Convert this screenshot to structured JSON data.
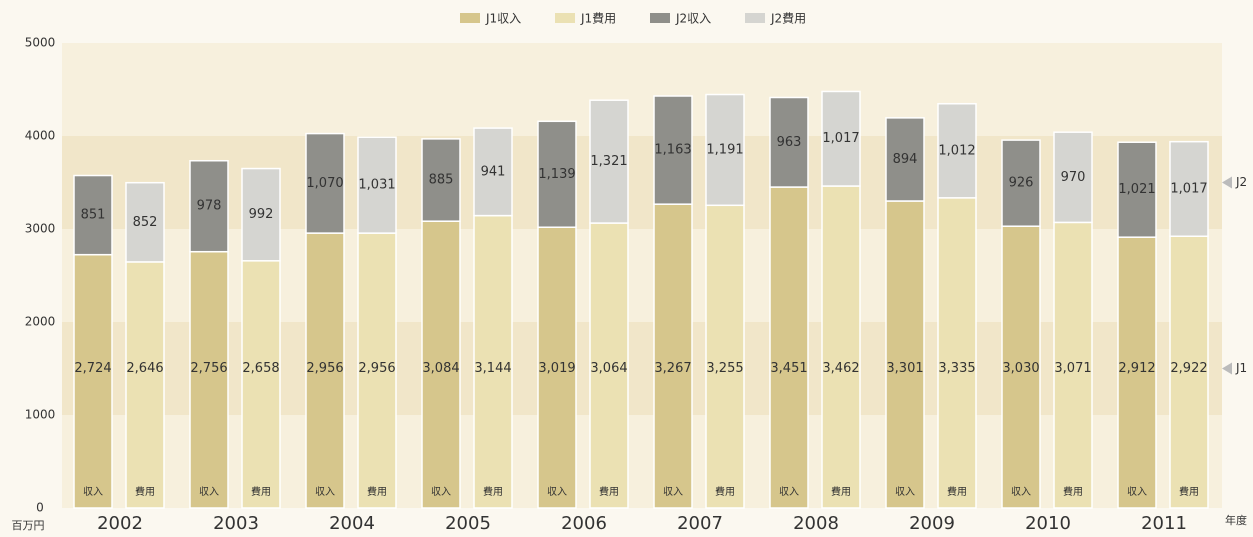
{
  "chart_data": {
    "type": "bar",
    "categories": [
      "2002",
      "2003",
      "2004",
      "2005",
      "2006",
      "2007",
      "2008",
      "2009",
      "2010",
      "2011"
    ],
    "bar_labels": [
      "収入",
      "費用"
    ],
    "series": [
      {
        "name": "J1収入",
        "color": "#d6c68c",
        "values": [
          2724,
          2756,
          2956,
          3084,
          3019,
          3267,
          3451,
          3301,
          3030,
          2912
        ],
        "value_labels": [
          "2,724",
          "2,756",
          "2,956",
          "3,084",
          "3,019",
          "3,267",
          "3,451",
          "3,301",
          "3,030",
          "2,912"
        ]
      },
      {
        "name": "J1費用",
        "color": "#ebe1b3",
        "values": [
          2646,
          2658,
          2956,
          3144,
          3064,
          3255,
          3462,
          3335,
          3071,
          2922
        ],
        "value_labels": [
          "2,646",
          "2,658",
          "2,956",
          "3,144",
          "3,064",
          "3,255",
          "3,462",
          "3,335",
          "3,071",
          "2,922"
        ]
      },
      {
        "name": "J2収入",
        "color": "#8f8f8a",
        "values": [
          851,
          978,
          1070,
          885,
          1139,
          1163,
          963,
          894,
          926,
          1021
        ],
        "value_labels": [
          "851",
          "978",
          "1,070",
          "885",
          "1,139",
          "1,163",
          "963",
          "894",
          "926",
          "1,021"
        ]
      },
      {
        "name": "J2費用",
        "color": "#d5d5d1",
        "values": [
          852,
          992,
          1031,
          941,
          1321,
          1191,
          1017,
          1012,
          970,
          1017
        ],
        "value_labels": [
          "852",
          "992",
          "1,031",
          "941",
          "1,321",
          "1,191",
          "1,017",
          "1,012",
          "970",
          "1,017"
        ]
      }
    ],
    "side_labels": [
      "J2",
      "J1"
    ],
    "ylabel": "百万円",
    "xlabel": "年度",
    "ylim": [
      0,
      5000
    ],
    "yticks": [
      0,
      1000,
      2000,
      3000,
      4000,
      5000
    ],
    "grid": true,
    "legend": "top"
  }
}
